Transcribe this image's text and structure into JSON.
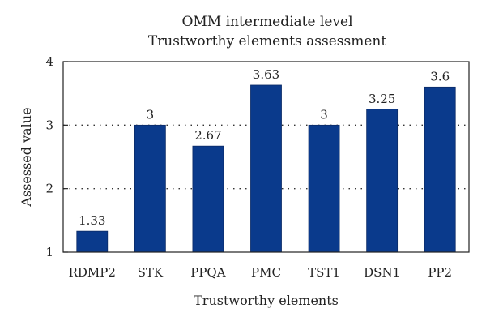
{
  "chart_data": {
    "type": "bar",
    "title": "OMM intermediate level",
    "subtitle": "Trustworthy elements assessment",
    "xlabel": "Trustworthy elements",
    "ylabel": "Assessed value",
    "categories": [
      "RDMP2",
      "STK",
      "PPQA",
      "PMC",
      "TST1",
      "DSN1",
      "PP2"
    ],
    "values": [
      1.33,
      3,
      2.67,
      3.63,
      3,
      3.25,
      3.6
    ],
    "data_labels": [
      "1.33",
      "3",
      "2.67",
      "3.63",
      "3",
      "3.25",
      "3.6"
    ],
    "ylim": [
      1,
      4
    ],
    "yticks": [
      1,
      2,
      3,
      4
    ],
    "ytick_labels": [
      "1",
      "2",
      "3",
      "4"
    ],
    "gridlines": [
      2,
      3
    ],
    "grid": "dotted horizontal at 2 and 3",
    "legend": "none",
    "bar_color": "#0a3a8c"
  }
}
